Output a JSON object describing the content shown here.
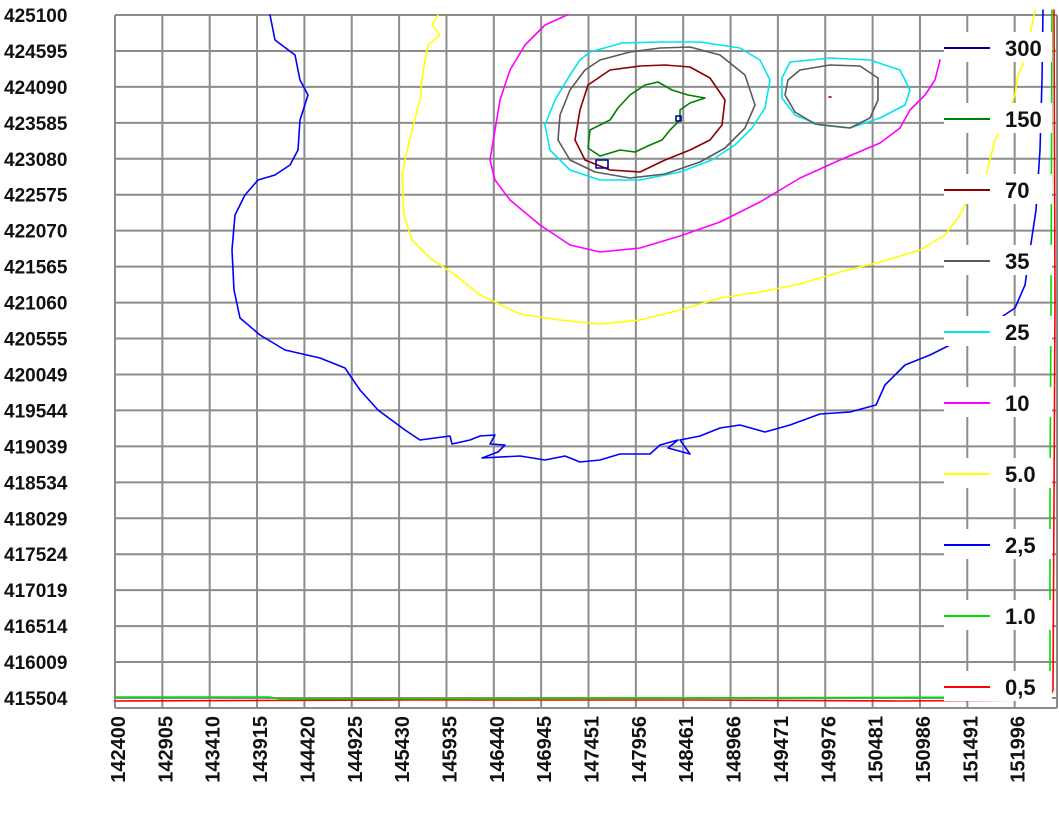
{
  "chart_data": {
    "type": "contour",
    "title": "",
    "xlabel": "",
    "ylabel": "",
    "x_ticks": [
      "142400",
      "142905",
      "143410",
      "143915",
      "144420",
      "144925",
      "145430",
      "145935",
      "146440",
      "146945",
      "147451",
      "147956",
      "148461",
      "148966",
      "149471",
      "149976",
      "150481",
      "150986",
      "151491",
      "151996"
    ],
    "y_ticks": [
      "425100",
      "424595",
      "424090",
      "423585",
      "423080",
      "422575",
      "422070",
      "421565",
      "421060",
      "420555",
      "420049",
      "419544",
      "419039",
      "418534",
      "418029",
      "417524",
      "417019",
      "416514",
      "416009",
      "415504"
    ],
    "xlim": [
      142400,
      151996
    ],
    "ylim": [
      415504,
      425100
    ],
    "grid": true,
    "legend_position": "right",
    "levels": [
      {
        "label": "300",
        "color": "#00008b"
      },
      {
        "label": "150",
        "color": "#008000"
      },
      {
        "label": "70",
        "color": "#8b0000"
      },
      {
        "label": "35",
        "color": "#5a5a5a"
      },
      {
        "label": "25",
        "color": "#00e5ee"
      },
      {
        "label": "10",
        "color": "#ff00ff"
      },
      {
        "label": "5.0",
        "color": "#ffff00"
      },
      {
        "label": "2,5",
        "color": "#0000ff"
      },
      {
        "label": "1.0",
        "color": "#00dd00"
      },
      {
        "label": "0,5",
        "color": "#ff0000"
      }
    ]
  }
}
